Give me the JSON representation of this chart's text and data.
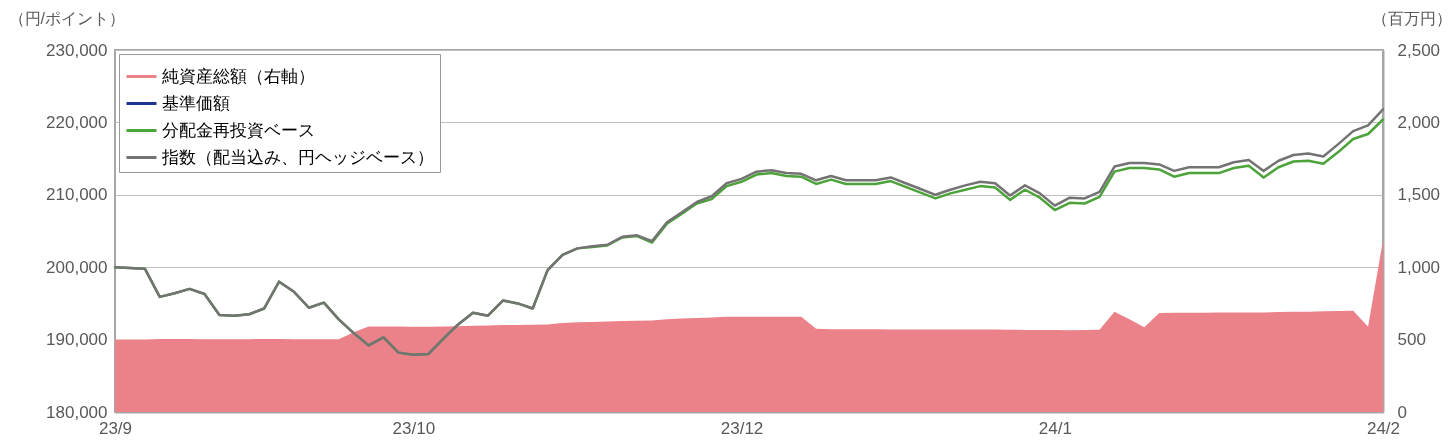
{
  "chart_data": {
    "type": "line",
    "categories": [
      "23/9",
      null,
      null,
      null,
      null,
      null,
      null,
      null,
      null,
      null,
      null,
      null,
      null,
      null,
      null,
      null,
      null,
      null,
      null,
      null,
      "23/10",
      null,
      null,
      null,
      null,
      null,
      null,
      null,
      null,
      null,
      null,
      null,
      null,
      null,
      null,
      null,
      null,
      null,
      null,
      null,
      null,
      null,
      "23/12",
      null,
      null,
      null,
      null,
      null,
      null,
      null,
      null,
      null,
      null,
      null,
      null,
      null,
      null,
      null,
      null,
      null,
      null,
      null,
      null,
      "24/1",
      null,
      null,
      null,
      null,
      null,
      null,
      null,
      null,
      null,
      null,
      null,
      null,
      null,
      null,
      null,
      null,
      null,
      null,
      null,
      null,
      null,
      "24/2"
    ],
    "series": [
      {
        "name": "純資産総額（右軸）",
        "type": "area",
        "axis": "y2",
        "color": "#eb8189",
        "values": [
          500,
          500,
          500,
          505,
          505,
          505,
          503,
          503,
          503,
          503,
          505,
          505,
          503,
          503,
          503,
          503,
          550,
          590,
          590,
          590,
          588,
          588,
          590,
          592,
          595,
          598,
          600,
          600,
          602,
          605,
          615,
          620,
          622,
          625,
          628,
          630,
          632,
          640,
          645,
          650,
          652,
          658,
          658,
          658,
          658,
          658,
          658,
          575,
          572,
          572,
          571,
          571,
          570,
          570,
          569,
          569,
          570,
          570,
          570,
          569,
          568,
          567,
          566,
          566,
          565,
          566,
          568,
          693,
          640,
          585,
          683,
          685,
          686,
          686,
          687,
          687,
          688,
          688,
          690,
          692,
          693,
          695,
          697,
          700,
          589,
          1188
        ]
      },
      {
        "name": "基準価額",
        "type": "line",
        "color": "#1f3490",
        "values": [
          null,
          null,
          null,
          null,
          null,
          null,
          null,
          null,
          null,
          null,
          null,
          null,
          null,
          null,
          null,
          null,
          null,
          null,
          null,
          null,
          null,
          null,
          null,
          null,
          null,
          null,
          null,
          null,
          null,
          null,
          null,
          null,
          null,
          null,
          null,
          null,
          null,
          null,
          null,
          null,
          null,
          null,
          null,
          null,
          null,
          null,
          null,
          null,
          null,
          null,
          null,
          null,
          null,
          null,
          null,
          null,
          null,
          null,
          null,
          null,
          null,
          null,
          null,
          null,
          null,
          null,
          null,
          null,
          null,
          null,
          null,
          null,
          null,
          null,
          null,
          null,
          null,
          null,
          null,
          null,
          null,
          null,
          null,
          null,
          null,
          null
        ]
      },
      {
        "name": "分配金再投資ベース",
        "type": "line",
        "color": "#4ca33a",
        "values": [
          200000,
          199900,
          199800,
          195900,
          196400,
          197000,
          196300,
          193400,
          193300,
          193500,
          194300,
          198000,
          196600,
          194400,
          195100,
          192800,
          190900,
          189200,
          190300,
          188200,
          187900,
          188000,
          190100,
          192100,
          193700,
          193300,
          195400,
          195000,
          194300,
          199600,
          201700,
          202600,
          202800,
          203000,
          204100,
          204300,
          203400,
          206000,
          207400,
          208800,
          209400,
          211200,
          211800,
          212800,
          213000,
          212600,
          212500,
          211500,
          212100,
          211500,
          211500,
          211500,
          211900,
          211100,
          210300,
          209500,
          210200,
          210700,
          211200,
          211000,
          209300,
          210700,
          209600,
          207900,
          208900,
          208800,
          209700,
          213200,
          213700,
          213700,
          213500,
          212500,
          213000,
          213000,
          213000,
          213700,
          214000,
          212400,
          213800,
          214600,
          214700,
          214300,
          215900,
          217700,
          218400,
          220400
        ]
      },
      {
        "name": "指数（配当込み、円ヘッジベース）",
        "type": "line",
        "color": "#737373",
        "values": [
          200000,
          199900,
          199800,
          195900,
          196400,
          197000,
          196300,
          193400,
          193300,
          193500,
          194300,
          198000,
          196600,
          194400,
          195100,
          192800,
          190900,
          189200,
          190300,
          188200,
          187900,
          188000,
          190100,
          192100,
          193700,
          193300,
          195400,
          195000,
          194300,
          199600,
          201700,
          202600,
          202900,
          203100,
          204200,
          204400,
          203600,
          206200,
          207600,
          209000,
          209800,
          211600,
          212200,
          213200,
          213400,
          213000,
          212900,
          212000,
          212600,
          212000,
          212000,
          212000,
          212400,
          211600,
          210800,
          210000,
          210700,
          211300,
          211800,
          211600,
          209900,
          211300,
          210200,
          208500,
          209600,
          209500,
          210400,
          213900,
          214400,
          214400,
          214200,
          213300,
          213800,
          213800,
          213800,
          214500,
          214800,
          213300,
          214700,
          215500,
          215700,
          215300,
          217000,
          218800,
          219600,
          221800
        ]
      }
    ],
    "ylabel": "（円/ポイント）",
    "y2label": "（百万円）",
    "ylim": [
      180000,
      230000
    ],
    "yticks": [
      {
        "value": 180000,
        "label": "180,000"
      },
      {
        "value": 190000,
        "label": "190,000"
      },
      {
        "value": 200000,
        "label": "200,000"
      },
      {
        "value": 210000,
        "label": "210,000"
      },
      {
        "value": 220000,
        "label": "220,000"
      },
      {
        "value": 230000,
        "label": "230,000"
      }
    ],
    "y2lim": [
      0,
      2500
    ],
    "y2ticks": [
      0,
      500,
      {
        "value": 1000,
        "label": "1,000"
      },
      {
        "value": 1500,
        "label": "1,500"
      },
      {
        "value": 2000,
        "label": "2,000"
      },
      {
        "value": 2500,
        "label": "2,500"
      }
    ],
    "grid": "y",
    "legend": "top left"
  }
}
